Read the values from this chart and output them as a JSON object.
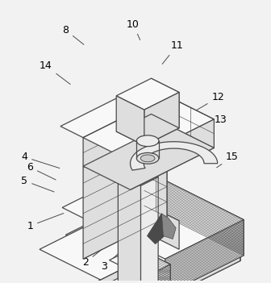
{
  "bg_color": "#f2f2f2",
  "lc": "#4a4a4a",
  "lw": 0.9,
  "thin_lw": 0.5,
  "label_fs": 9,
  "annotation_color": "#333333"
}
